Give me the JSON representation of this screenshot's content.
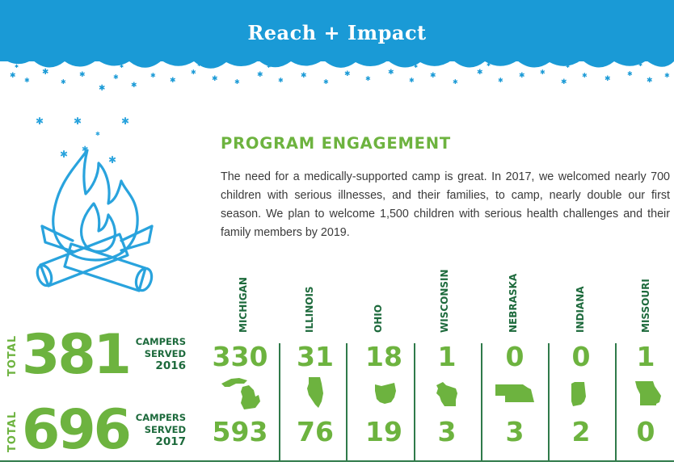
{
  "header": {
    "title": "Reach + Impact"
  },
  "section": {
    "heading": "PROGRAM ENGAGEMENT",
    "body": "The need for a medically-supported camp is great. In 2017, we welcomed nearly 700 children with serious illnesses, and their families, to camp, nearly double our first season. We plan to welcome 1,500 children with serious health challenges and their family members by 2019."
  },
  "totals": [
    {
      "label": "TOTAL",
      "value": "381",
      "caption1": "CAMPERS",
      "caption2": "SERVED",
      "year": "2016"
    },
    {
      "label": "TOTAL",
      "value": "696",
      "caption1": "CAMPERS",
      "caption2": "SERVED",
      "year": "2017"
    }
  ],
  "states": [
    {
      "name": "MICHIGAN",
      "y2016": "330",
      "y2017": "593",
      "icon": "michigan-shape-icon"
    },
    {
      "name": "ILLINOIS",
      "y2016": "31",
      "y2017": "76",
      "icon": "illinois-shape-icon"
    },
    {
      "name": "OHIO",
      "y2016": "18",
      "y2017": "19",
      "icon": "ohio-shape-icon"
    },
    {
      "name": "WISCONSIN",
      "y2016": "1",
      "y2017": "3",
      "icon": "wisconsin-shape-icon"
    },
    {
      "name": "NEBRASKA",
      "y2016": "0",
      "y2017": "3",
      "icon": "nebraska-shape-icon"
    },
    {
      "name": "INDIANA",
      "y2016": "0",
      "y2017": "2",
      "icon": "indiana-shape-icon"
    },
    {
      "name": "MISSOURI",
      "y2016": "1",
      "y2017": "0",
      "icon": "missouri-shape-icon"
    }
  ],
  "colors": {
    "banner": "#1a9ad6",
    "green": "#6db33f",
    "dark_green": "#1d6a3c",
    "campfire": "#29a3dd"
  }
}
